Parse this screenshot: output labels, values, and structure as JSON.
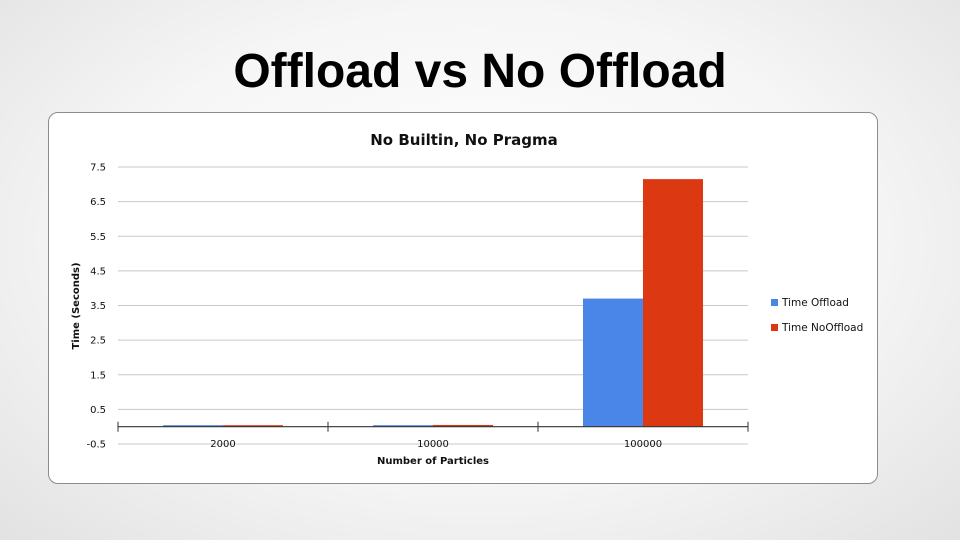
{
  "slide": {
    "title": "Offload vs No Offload"
  },
  "chart_data": {
    "type": "bar",
    "title": "No Builtin, No Pragma",
    "xlabel": "Number of Particles",
    "ylabel": "Time (Seconds)",
    "categories": [
      "2000",
      "10000",
      "100000"
    ],
    "series": [
      {
        "name": "Time Offload",
        "values": [
          0.01,
          0.02,
          3.7
        ],
        "color": "#4a86e8"
      },
      {
        "name": "Time NoOffload",
        "values": [
          0.01,
          0.05,
          7.15
        ],
        "color": "#dc3912"
      }
    ],
    "ylim": [
      -0.5,
      7.5
    ],
    "yticks": [
      "7.5",
      "6.5",
      "5.5",
      "4.5",
      "3.5",
      "2.5",
      "1.5",
      "0.5",
      "-0.5"
    ],
    "grid": true,
    "legend": "right",
    "gridline_color": "#c8c8c8",
    "axis_color": "#333333"
  }
}
